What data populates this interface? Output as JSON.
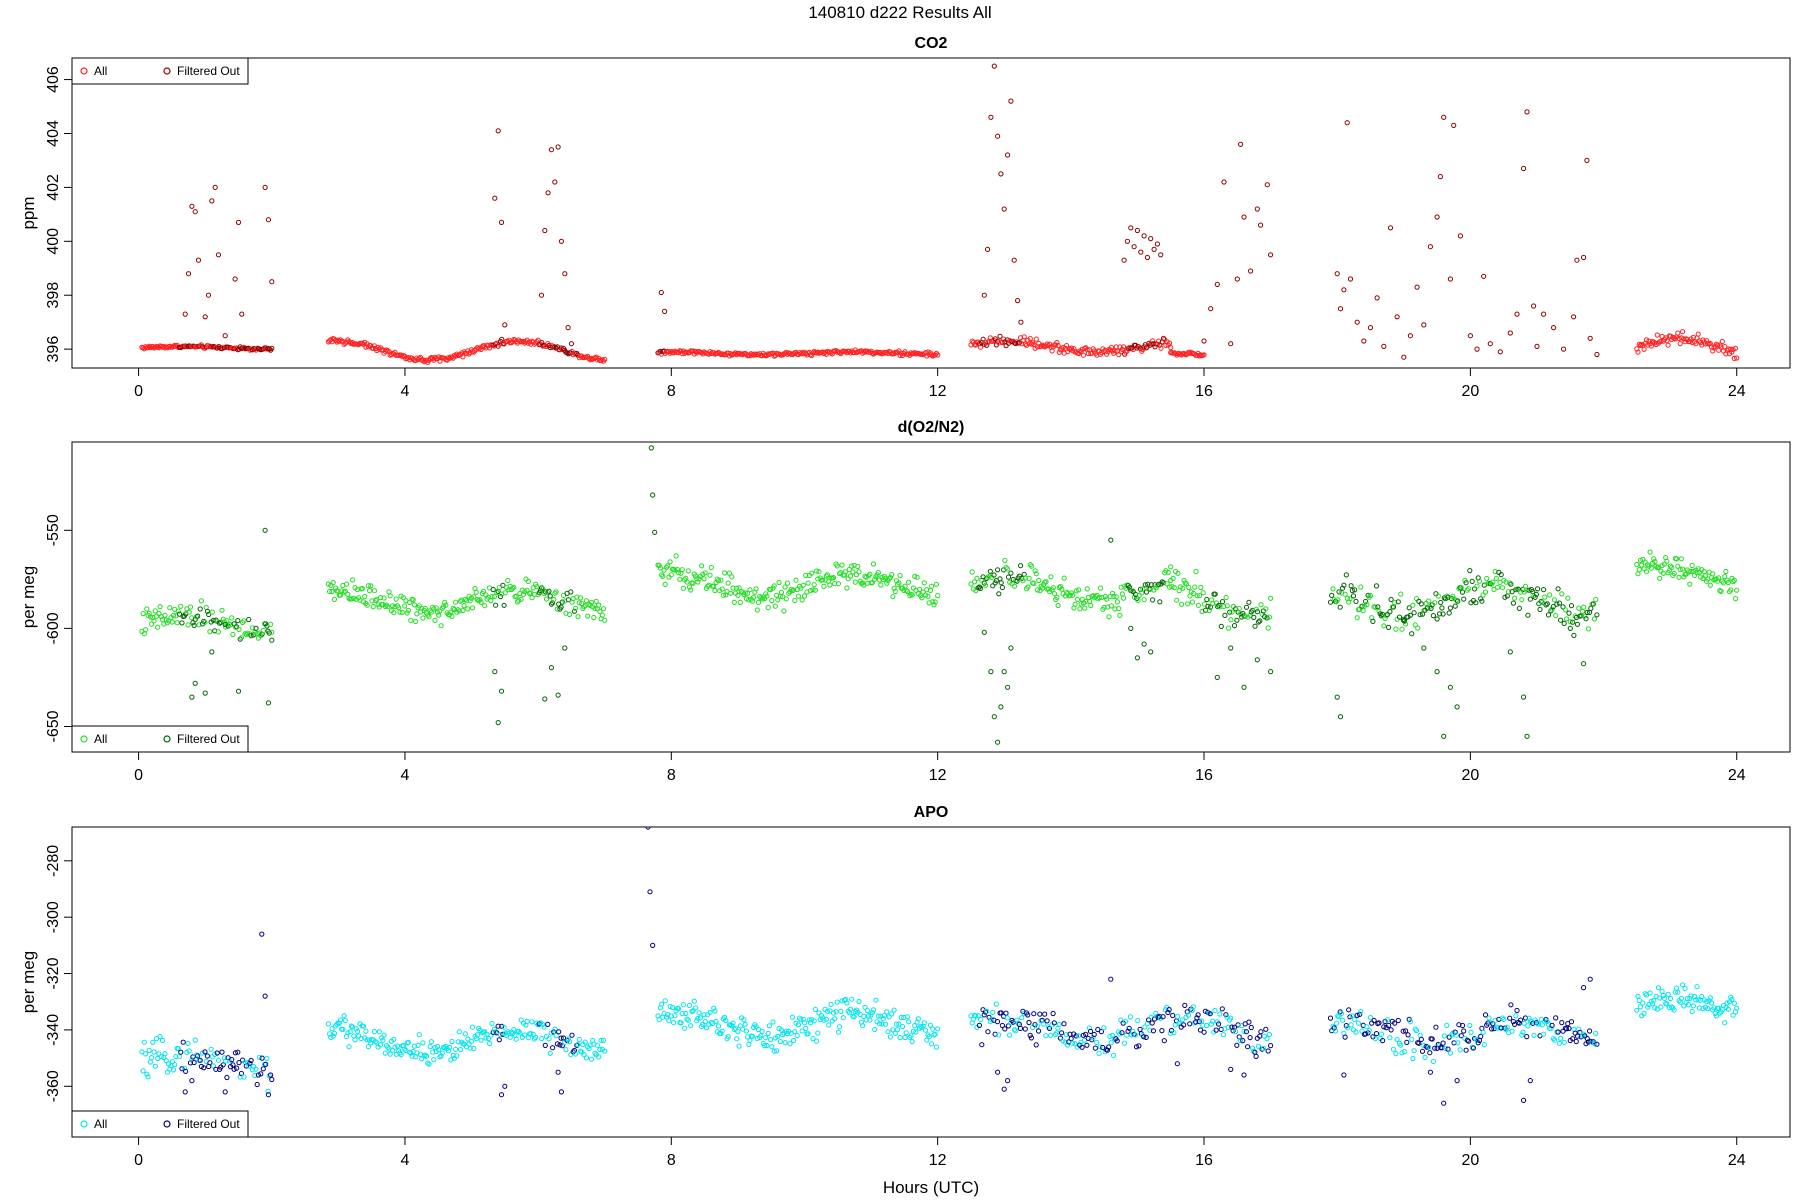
{
  "figure": {
    "title": "140810   d222   Results All"
  },
  "chart_data": [
    {
      "type": "scatter",
      "title": "CO2",
      "xlabel": "",
      "ylabel": "ppm",
      "xlim": [
        -1,
        24.8
      ],
      "ylim": [
        395.3,
        406.8
      ],
      "xticks": [
        0,
        4,
        8,
        12,
        16,
        20,
        24
      ],
      "yticks": [
        396,
        398,
        400,
        402,
        404,
        406
      ],
      "legend": {
        "position": "top-left",
        "entries": [
          "All",
          "Filtered Out"
        ]
      },
      "colors": {
        "all": "#ff2020",
        "filtered": "#8b0000"
      },
      "filtered_regions": [
        [
          0.6,
          2.0
        ],
        [
          5.3,
          5.5
        ],
        [
          6.0,
          6.6
        ],
        [
          7.8,
          7.9
        ],
        [
          12.6,
          13.3
        ],
        [
          14.8,
          15.4
        ],
        [
          16.0,
          17.0
        ],
        [
          17.9,
          21.9
        ]
      ],
      "series": [
        {
          "name": "All",
          "segments": [
            {
              "start": 0.05,
              "end": 2.0,
              "base": 396.05,
              "amp": 0.05,
              "noise": 0.05
            },
            {
              "start": 2.85,
              "end": 7.0,
              "base": 395.95,
              "amp": 0.35,
              "noise": 0.08
            },
            {
              "start": 7.8,
              "end": 12.0,
              "base": 395.85,
              "amp": 0.05,
              "noise": 0.06
            },
            {
              "start": 12.5,
              "end": 15.5,
              "base": 396.1,
              "amp": 0.2,
              "noise": 0.15
            },
            {
              "start": 15.5,
              "end": 16.0,
              "base": 395.8,
              "amp": 0.05,
              "noise": 0.05
            },
            {
              "start": 22.5,
              "end": 24.0,
              "base": 396.0,
              "amp": 0.4,
              "noise": 0.2
            }
          ]
        },
        {
          "name": "Filtered Out",
          "points": [
            [
              0.7,
              397.3
            ],
            [
              0.75,
              398.8
            ],
            [
              0.8,
              401.3
            ],
            [
              0.85,
              401.1
            ],
            [
              0.9,
              399.3
            ],
            [
              1.0,
              397.2
            ],
            [
              1.05,
              398.0
            ],
            [
              1.1,
              401.5
            ],
            [
              1.15,
              402.0
            ],
            [
              1.2,
              399.5
            ],
            [
              1.3,
              396.5
            ],
            [
              1.45,
              398.6
            ],
            [
              1.5,
              400.7
            ],
            [
              1.55,
              397.3
            ],
            [
              1.9,
              402.0
            ],
            [
              1.95,
              400.8
            ],
            [
              2.0,
              398.5
            ],
            [
              5.35,
              401.6
            ],
            [
              5.4,
              404.1
            ],
            [
              5.45,
              400.7
            ],
            [
              5.5,
              396.9
            ],
            [
              6.05,
              398.0
            ],
            [
              6.1,
              400.4
            ],
            [
              6.15,
              401.8
            ],
            [
              6.2,
              403.4
            ],
            [
              6.25,
              402.2
            ],
            [
              6.3,
              403.5
            ],
            [
              6.35,
              400.0
            ],
            [
              6.4,
              398.8
            ],
            [
              6.45,
              396.8
            ],
            [
              6.5,
              396.2
            ],
            [
              7.85,
              398.1
            ],
            [
              7.9,
              397.4
            ],
            [
              12.7,
              398.0
            ],
            [
              12.75,
              399.7
            ],
            [
              12.8,
              404.6
            ],
            [
              12.85,
              406.5
            ],
            [
              12.9,
              403.9
            ],
            [
              12.95,
              402.5
            ],
            [
              13.0,
              401.2
            ],
            [
              13.05,
              403.2
            ],
            [
              13.1,
              405.2
            ],
            [
              13.15,
              399.3
            ],
            [
              13.2,
              397.8
            ],
            [
              13.25,
              397.0
            ],
            [
              14.8,
              399.3
            ],
            [
              14.85,
              400.0
            ],
            [
              14.9,
              400.5
            ],
            [
              14.95,
              399.8
            ],
            [
              15.0,
              400.4
            ],
            [
              15.05,
              399.6
            ],
            [
              15.1,
              400.2
            ],
            [
              15.15,
              399.4
            ],
            [
              15.2,
              400.1
            ],
            [
              15.25,
              399.7
            ],
            [
              15.3,
              399.9
            ],
            [
              15.35,
              399.5
            ],
            [
              16.0,
              396.3
            ],
            [
              16.1,
              397.5
            ],
            [
              16.2,
              398.4
            ],
            [
              16.3,
              402.2
            ],
            [
              16.4,
              396.2
            ],
            [
              16.5,
              398.6
            ],
            [
              16.55,
              403.6
            ],
            [
              16.6,
              400.9
            ],
            [
              16.7,
              398.9
            ],
            [
              16.8,
              401.2
            ],
            [
              16.85,
              400.6
            ],
            [
              16.95,
              402.1
            ],
            [
              17.0,
              399.5
            ],
            [
              18.0,
              398.8
            ],
            [
              18.05,
              397.5
            ],
            [
              18.1,
              398.2
            ],
            [
              18.15,
              404.4
            ],
            [
              18.2,
              398.6
            ],
            [
              18.3,
              397.0
            ],
            [
              18.4,
              396.3
            ],
            [
              18.5,
              396.8
            ],
            [
              18.6,
              397.9
            ],
            [
              18.7,
              396.1
            ],
            [
              18.8,
              400.5
            ],
            [
              18.9,
              397.2
            ],
            [
              19.0,
              395.7
            ],
            [
              19.1,
              396.5
            ],
            [
              19.2,
              398.3
            ],
            [
              19.3,
              396.9
            ],
            [
              19.4,
              399.8
            ],
            [
              19.5,
              400.9
            ],
            [
              19.55,
              402.4
            ],
            [
              19.6,
              404.6
            ],
            [
              19.7,
              398.6
            ],
            [
              19.75,
              404.3
            ],
            [
              19.85,
              400.2
            ],
            [
              20.0,
              396.5
            ],
            [
              20.1,
              396.0
            ],
            [
              20.2,
              398.7
            ],
            [
              20.3,
              396.2
            ],
            [
              20.45,
              395.9
            ],
            [
              20.6,
              396.6
            ],
            [
              20.7,
              397.3
            ],
            [
              20.8,
              402.7
            ],
            [
              20.85,
              404.8
            ],
            [
              20.95,
              397.6
            ],
            [
              21.0,
              396.1
            ],
            [
              21.1,
              397.3
            ],
            [
              21.25,
              396.8
            ],
            [
              21.4,
              396.0
            ],
            [
              21.55,
              397.2
            ],
            [
              21.6,
              399.3
            ],
            [
              21.7,
              399.4
            ],
            [
              21.75,
              403.0
            ],
            [
              21.8,
              396.4
            ],
            [
              21.9,
              395.8
            ]
          ]
        }
      ]
    },
    {
      "type": "scatter",
      "title": "d(O2/N2)",
      "xlabel": "",
      "ylabel": "per meg",
      "xlim": [
        -1,
        24.8
      ],
      "ylim": [
        -663,
        -505
      ],
      "xticks": [
        0,
        4,
        8,
        12,
        16,
        20,
        24
      ],
      "yticks": [
        -650,
        -600,
        -550
      ],
      "legend": {
        "position": "bottom-left",
        "entries": [
          "All",
          "Filtered Out"
        ]
      },
      "colors": {
        "all": "#22dd22",
        "filtered": "#006400"
      },
      "filtered_regions": [
        [
          0.6,
          2.0
        ],
        [
          5.3,
          5.5
        ],
        [
          6.0,
          6.6
        ],
        [
          12.6,
          13.3
        ],
        [
          14.8,
          15.4
        ],
        [
          16.0,
          17.0
        ],
        [
          17.9,
          21.9
        ]
      ],
      "series": [
        {
          "name": "All",
          "segments": [
            {
              "start": 0.05,
              "end": 2.0,
              "base": -598,
              "amp": 4,
              "noise": 6
            },
            {
              "start": 2.85,
              "end": 7.0,
              "base": -586,
              "amp": 5,
              "noise": 5
            },
            {
              "start": 7.8,
              "end": 12.0,
              "base": -578,
              "amp": 6,
              "noise": 6
            },
            {
              "start": 12.5,
              "end": 15.5,
              "base": -580,
              "amp": 6,
              "noise": 6
            },
            {
              "start": 15.5,
              "end": 17.0,
              "base": -585,
              "amp": 8,
              "noise": 8
            },
            {
              "start": 17.9,
              "end": 21.9,
              "base": -585,
              "amp": 7,
              "noise": 8
            },
            {
              "start": 22.5,
              "end": 24.0,
              "base": -572,
              "amp": 5,
              "noise": 5
            }
          ]
        },
        {
          "name": "Filtered Out",
          "points": [
            [
              0.8,
              -635
            ],
            [
              0.85,
              -628
            ],
            [
              1.0,
              -633
            ],
            [
              1.1,
              -612
            ],
            [
              1.3,
              -598
            ],
            [
              1.5,
              -632
            ],
            [
              1.9,
              -550
            ],
            [
              1.95,
              -638
            ],
            [
              2.0,
              -606
            ],
            [
              5.35,
              -622
            ],
            [
              5.4,
              -648
            ],
            [
              5.45,
              -632
            ],
            [
              6.1,
              -636
            ],
            [
              6.2,
              -620
            ],
            [
              6.3,
              -634
            ],
            [
              6.4,
              -610
            ],
            [
              7.7,
              -508
            ],
            [
              7.72,
              -532
            ],
            [
              7.75,
              -551
            ],
            [
              12.7,
              -602
            ],
            [
              12.8,
              -622
            ],
            [
              12.85,
              -645
            ],
            [
              12.9,
              -658
            ],
            [
              12.95,
              -640
            ],
            [
              13.0,
              -622
            ],
            [
              13.05,
              -630
            ],
            [
              13.1,
              -610
            ],
            [
              14.6,
              -555
            ],
            [
              14.9,
              -600
            ],
            [
              15.0,
              -615
            ],
            [
              15.1,
              -608
            ],
            [
              15.2,
              -612
            ],
            [
              16.2,
              -625
            ],
            [
              16.4,
              -610
            ],
            [
              16.6,
              -630
            ],
            [
              16.8,
              -616
            ],
            [
              17.0,
              -622
            ],
            [
              18.0,
              -635
            ],
            [
              18.05,
              -645
            ],
            [
              19.0,
              -596
            ],
            [
              19.3,
              -610
            ],
            [
              19.5,
              -622
            ],
            [
              19.6,
              -655
            ],
            [
              19.7,
              -630
            ],
            [
              19.8,
              -640
            ],
            [
              20.6,
              -612
            ],
            [
              20.8,
              -635
            ],
            [
              20.85,
              -655
            ],
            [
              21.5,
              -600
            ],
            [
              21.7,
              -618
            ]
          ]
        }
      ]
    },
    {
      "type": "scatter",
      "title": "APO",
      "xlabel": "Hours (UTC)",
      "ylabel": "per meg",
      "xlim": [
        -1,
        24.8
      ],
      "ylim": [
        -378,
        -268
      ],
      "xticks": [
        0,
        4,
        8,
        12,
        16,
        20,
        24
      ],
      "yticks": [
        -360,
        -340,
        -320,
        -300,
        -280
      ],
      "legend": {
        "position": "bottom-left",
        "entries": [
          "All",
          "Filtered Out"
        ]
      },
      "colors": {
        "all": "#00e5ee",
        "filtered": "#000080"
      },
      "filtered_regions": [
        [
          0.6,
          2.0
        ],
        [
          5.3,
          5.5
        ],
        [
          6.0,
          6.6
        ],
        [
          12.6,
          17.0
        ],
        [
          17.9,
          21.9
        ]
      ],
      "series": [
        {
          "name": "All",
          "segments": [
            {
              "start": 0.05,
              "end": 2.0,
              "base": -352,
              "amp": 3,
              "noise": 5
            },
            {
              "start": 2.85,
              "end": 7.0,
              "base": -344,
              "amp": 4,
              "noise": 4
            },
            {
              "start": 7.8,
              "end": 12.0,
              "base": -338,
              "amp": 4,
              "noise": 5
            },
            {
              "start": 12.5,
              "end": 17.0,
              "base": -340,
              "amp": 4,
              "noise": 5
            },
            {
              "start": 17.9,
              "end": 21.9,
              "base": -341,
              "amp": 4,
              "noise": 5
            },
            {
              "start": 22.5,
              "end": 24.0,
              "base": -332,
              "amp": 3,
              "noise": 4
            }
          ]
        },
        {
          "name": "Filtered Out",
          "points": [
            [
              0.7,
              -362
            ],
            [
              0.8,
              -358
            ],
            [
              1.3,
              -362
            ],
            [
              1.85,
              -306
            ],
            [
              1.9,
              -328
            ],
            [
              1.95,
              -363
            ],
            [
              5.45,
              -363
            ],
            [
              5.5,
              -360
            ],
            [
              6.3,
              -355
            ],
            [
              6.35,
              -362
            ],
            [
              7.65,
              -268
            ],
            [
              7.68,
              -291
            ],
            [
              7.72,
              -310
            ],
            [
              12.9,
              -355
            ],
            [
              13.0,
              -361
            ],
            [
              13.05,
              -358
            ],
            [
              14.6,
              -322
            ],
            [
              15.6,
              -352
            ],
            [
              16.4,
              -354
            ],
            [
              16.6,
              -356
            ],
            [
              18.1,
              -356
            ],
            [
              19.4,
              -355
            ],
            [
              19.6,
              -366
            ],
            [
              19.8,
              -358
            ],
            [
              20.8,
              -365
            ],
            [
              20.9,
              -358
            ],
            [
              21.7,
              -325
            ],
            [
              21.8,
              -322
            ]
          ]
        }
      ]
    }
  ]
}
